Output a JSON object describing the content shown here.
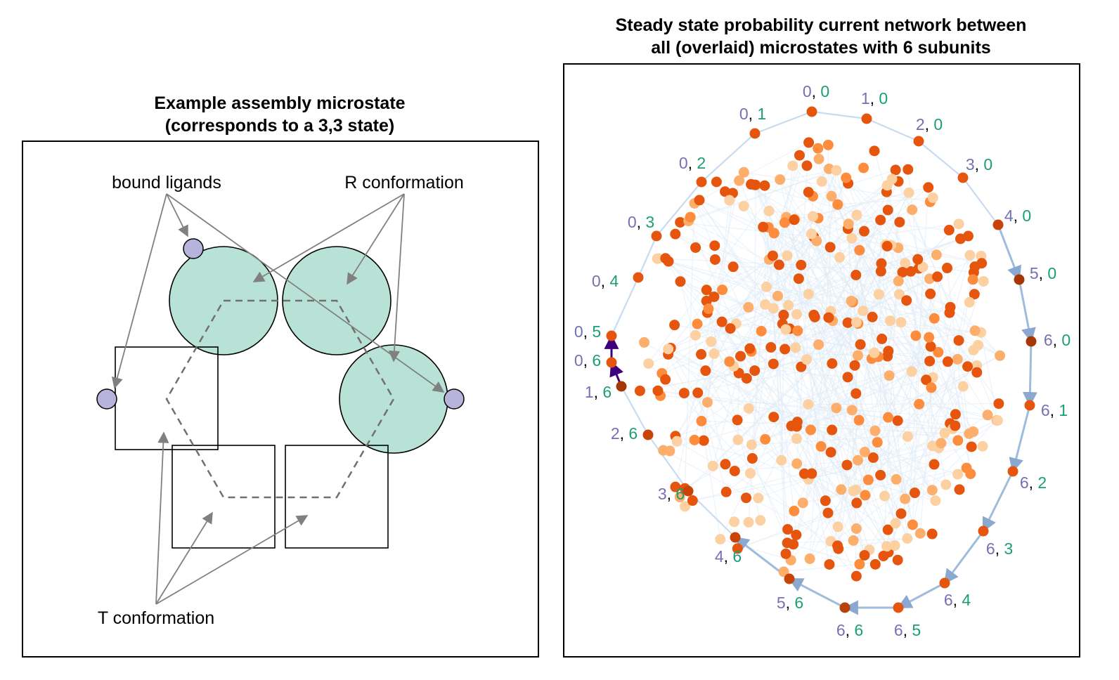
{
  "left_panel": {
    "title_line1": "Example assembly microstate",
    "title_line2": "(corresponds to a 3,3 state)",
    "annotations": {
      "bound_ligands": "bound ligands",
      "r_conformation": "R conformation",
      "t_conformation": "T conformation"
    },
    "colors": {
      "r_subunit_fill": "#b9e2d6",
      "ligand_fill": "#b7b4dc",
      "arrow": "#808080",
      "dashed_hexagon": "#707070"
    }
  },
  "right_panel": {
    "title_line1": "Steady state probability current network between",
    "title_line2": "all (overlaid) microstates with 6 subunits",
    "colors": {
      "first_index": "#7570b3",
      "second_index": "#1b9e77",
      "node_light": "#fdd0a2",
      "node_mid": "#fd8d3c",
      "node_dark": "#e6550d",
      "node_darkest": "#a63603",
      "edge_faint": "#deebf7",
      "edge_strong": "#9ebcdb",
      "edge_max": "#3f007d"
    },
    "ring_labels": [
      {
        "a": "0",
        "b": "0"
      },
      {
        "a": "1",
        "b": "0"
      },
      {
        "a": "2",
        "b": "0"
      },
      {
        "a": "3",
        "b": "0"
      },
      {
        "a": "4",
        "b": "0"
      },
      {
        "a": "5",
        "b": "0"
      },
      {
        "a": "6",
        "b": "0"
      },
      {
        "a": "6",
        "b": "1"
      },
      {
        "a": "6",
        "b": "2"
      },
      {
        "a": "6",
        "b": "3"
      },
      {
        "a": "6",
        "b": "4"
      },
      {
        "a": "6",
        "b": "5"
      },
      {
        "a": "6",
        "b": "6"
      },
      {
        "a": "5",
        "b": "6"
      },
      {
        "a": "4",
        "b": "6"
      },
      {
        "a": "3",
        "b": "6"
      },
      {
        "a": "2",
        "b": "6"
      },
      {
        "a": "1",
        "b": "6"
      },
      {
        "a": "0",
        "b": "6"
      },
      {
        "a": "0",
        "b": "5"
      },
      {
        "a": "0",
        "b": "4"
      },
      {
        "a": "0",
        "b": "3"
      },
      {
        "a": "0",
        "b": "2"
      },
      {
        "a": "0",
        "b": "1"
      }
    ]
  }
}
